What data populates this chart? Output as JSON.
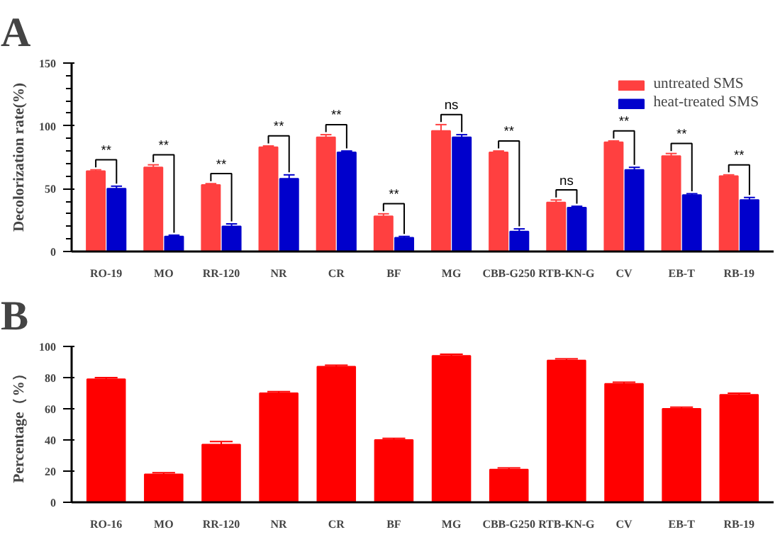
{
  "chart_data": [
    {
      "type": "bar",
      "title": "A",
      "ylabel": "Decolorization rate(%)",
      "categories": [
        "RO-19",
        "MO",
        "RR-120",
        "NR",
        "CR",
        "BF",
        "MG",
        "CBB-G250",
        "RTB-KN-G",
        "CV",
        "EB-T",
        "RB-19"
      ],
      "series": [
        {
          "name": "untreated SMS",
          "color": "#ff4040",
          "values": [
            64,
            67,
            53,
            83,
            91,
            28,
            96,
            79,
            39,
            87,
            76,
            60
          ],
          "errors": [
            1,
            2,
            1,
            1,
            2,
            2,
            5,
            1,
            2,
            1,
            2,
            1
          ]
        },
        {
          "name": "heat-treated SMS",
          "color": "#0000cc",
          "values": [
            50,
            12,
            20,
            58,
            79,
            11,
            91,
            16,
            35,
            65,
            45,
            41
          ],
          "errors": [
            2,
            1,
            2,
            3,
            1,
            1,
            2,
            2,
            1,
            2,
            1,
            2
          ]
        }
      ],
      "ylim": [
        0,
        150
      ],
      "yticks": [
        0,
        50,
        100,
        150
      ],
      "legend": "top right",
      "annotations": [
        {
          "text": "**",
          "x": "RO-19",
          "y": 64
        },
        {
          "text": "**",
          "x": "MO",
          "y": 67
        },
        {
          "text": "**",
          "x": "RR-120",
          "y": 53
        },
        {
          "text": "**",
          "x": "NR",
          "y": 83
        },
        {
          "text": "**",
          "x": "CR",
          "y": 91
        },
        {
          "text": "**",
          "x": "BF",
          "y": 28
        },
        {
          "text": "ns",
          "x": "MG",
          "y": 96
        },
        {
          "text": "**",
          "x": "CBB-G250",
          "y": 79
        },
        {
          "text": "ns",
          "x": "RTB-KN-G",
          "y": 39
        },
        {
          "text": "**",
          "x": "CV",
          "y": 87
        },
        {
          "text": "**",
          "x": "EB-T",
          "y": 76
        },
        {
          "text": "**",
          "x": "RB-19",
          "y": 60
        }
      ]
    },
    {
      "type": "bar",
      "title": "B",
      "ylabel": "Percentage（%）",
      "categories": [
        "RO-16",
        "MO",
        "RR-120",
        "NR",
        "CR",
        "BF",
        "MG",
        "CBB-G250",
        "RTB-KN-G",
        "CV",
        "EB-T",
        "RB-19"
      ],
      "values": [
        79,
        18,
        37,
        70,
        87,
        40,
        94,
        21,
        91,
        76,
        60,
        69
      ],
      "color": "#ff0000",
      "errors": [
        1,
        1,
        2,
        1,
        1,
        1,
        1,
        1,
        1,
        1,
        1,
        1
      ],
      "ylim": [
        0,
        100
      ],
      "yticks": [
        0,
        20,
        40,
        60,
        80,
        100
      ]
    }
  ]
}
